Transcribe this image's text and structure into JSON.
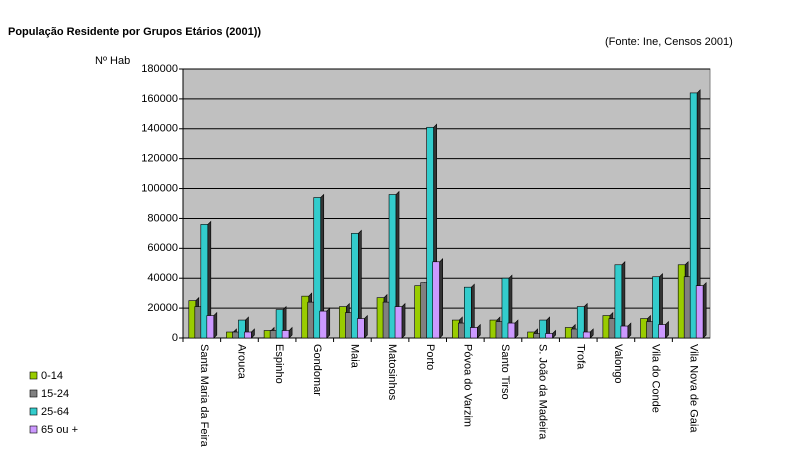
{
  "chart_data": {
    "type": "bar",
    "title": "População Residente por Grupos Etários (2001))",
    "subtitle": "(Fonte: Ine, Censos 2001)",
    "y_label": "Nº Hab",
    "categories": [
      "Santa Maria da Feira",
      "Arouca",
      "Espinho",
      "Gondomar",
      "Maia",
      "Matosinhos",
      "Porto",
      "Póvoa do Varzim",
      "Santo Tirso",
      "S. João da Madeira",
      "Trofa",
      "Valongo",
      "Vila do Conde",
      "Vila Nova de Gaia"
    ],
    "series": [
      {
        "name": "0-14",
        "color": "#99cc00",
        "values": [
          25000,
          4000,
          5000,
          28000,
          21000,
          27000,
          35000,
          12000,
          12000,
          4000,
          7000,
          15000,
          13000,
          49000
        ]
      },
      {
        "name": "15-24",
        "color": "#808080",
        "values": [
          21000,
          4000,
          5000,
          24000,
          17000,
          24000,
          37000,
          10000,
          11000,
          3000,
          6000,
          13000,
          11000,
          41000
        ]
      },
      {
        "name": "25-64",
        "color": "#33cccc",
        "values": [
          76000,
          12000,
          19000,
          94000,
          70000,
          96000,
          141000,
          34000,
          40000,
          12000,
          21000,
          49000,
          41000,
          164000
        ]
      },
      {
        "name": "65 ou +",
        "color": "#cc99ff",
        "values": [
          15000,
          4000,
          5000,
          18000,
          13000,
          21000,
          51000,
          7000,
          10000,
          3000,
          4000,
          8000,
          9000,
          35000
        ]
      }
    ],
    "ylim": [
      0,
      180000
    ],
    "yticks": [
      0,
      20000,
      40000,
      60000,
      80000,
      100000,
      120000,
      140000,
      160000,
      180000
    ],
    "grid": true,
    "plot_background": "#c0c0c0",
    "legend": "bottom-left"
  }
}
